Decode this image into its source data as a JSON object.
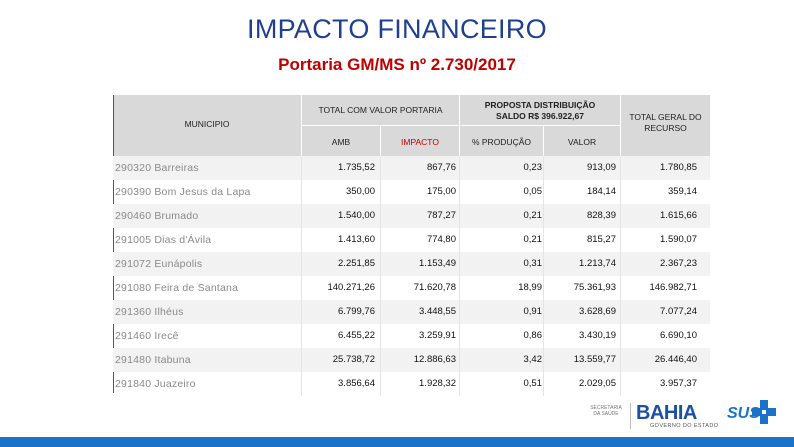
{
  "header": {
    "title": "IMPACTO FINANCEIRO",
    "subtitle": "Portaria GM/MS nº 2.730/2017"
  },
  "table": {
    "col_municipio": "MUNICIPIO",
    "col_total_portaria": "TOTAL COM VALOR PORTARIA",
    "col_amb": "AMB",
    "col_impacto": "IMPACTO",
    "col_proposta": "PROPOSTA DISTRIBUIÇÃO SALDO R$ 396.922,67",
    "col_producao": "% PRODUÇÃO",
    "col_valor": "VALOR",
    "col_total_geral": "TOTAL GERAL DO RECURSO",
    "rows": [
      {
        "municipio": "290320 Barreiras",
        "amb": "1.735,52",
        "impacto": "867,76",
        "producao": "0,23",
        "valor": "913,09",
        "total": "1.780,85"
      },
      {
        "municipio": "290390 Bom Jesus da Lapa",
        "amb": "350,00",
        "impacto": "175,00",
        "producao": "0,05",
        "valor": "184,14",
        "total": "359,14"
      },
      {
        "municipio": "290460 Brumado",
        "amb": "1.540,00",
        "impacto": "787,27",
        "producao": "0,21",
        "valor": "828,39",
        "total": "1.615,66"
      },
      {
        "municipio": "291005 Dias d'Ávila",
        "amb": "1.413,60",
        "impacto": "774,80",
        "producao": "0,21",
        "valor": "815,27",
        "total": "1.590,07"
      },
      {
        "municipio": "291072 Eunápolis",
        "amb": "2.251,85",
        "impacto": "1.153,49",
        "producao": "0,31",
        "valor": "1.213,74",
        "total": "2.367,23"
      },
      {
        "municipio": "291080 Feira de Santana",
        "amb": "140.271,26",
        "impacto": "71.620,78",
        "producao": "18,99",
        "valor": "75.361,93",
        "total": "146.982,71"
      },
      {
        "municipio": "291360 Ilhéus",
        "amb": "6.799,76",
        "impacto": "3.448,55",
        "producao": "0,91",
        "valor": "3.628,69",
        "total": "7.077,24"
      },
      {
        "municipio": "291460 Irecê",
        "amb": "6.455,22",
        "impacto": "3.259,91",
        "producao": "0,86",
        "valor": "3.430,19",
        "total": "6.690,10"
      },
      {
        "municipio": "291480 Itabuna",
        "amb": "25.738,72",
        "impacto": "12.886,63",
        "producao": "3,42",
        "valor": "13.559,77",
        "total": "26.446,40"
      },
      {
        "municipio": "291840 Juazeiro",
        "amb": "3.856,64",
        "impacto": "1.928,32",
        "producao": "0,51",
        "valor": "2.029,05",
        "total": "3.957,37"
      }
    ]
  },
  "footer": {
    "secretaria": "SECRETARIA DA SAÚDE",
    "bahia": "BAHIA",
    "bahia_sub": "GOVERNO DO ESTADO",
    "sus": "SUS"
  },
  "colors": {
    "title": "#1f3f8f",
    "subtitle": "#c00000",
    "footer_bar": "#1a73c9"
  }
}
